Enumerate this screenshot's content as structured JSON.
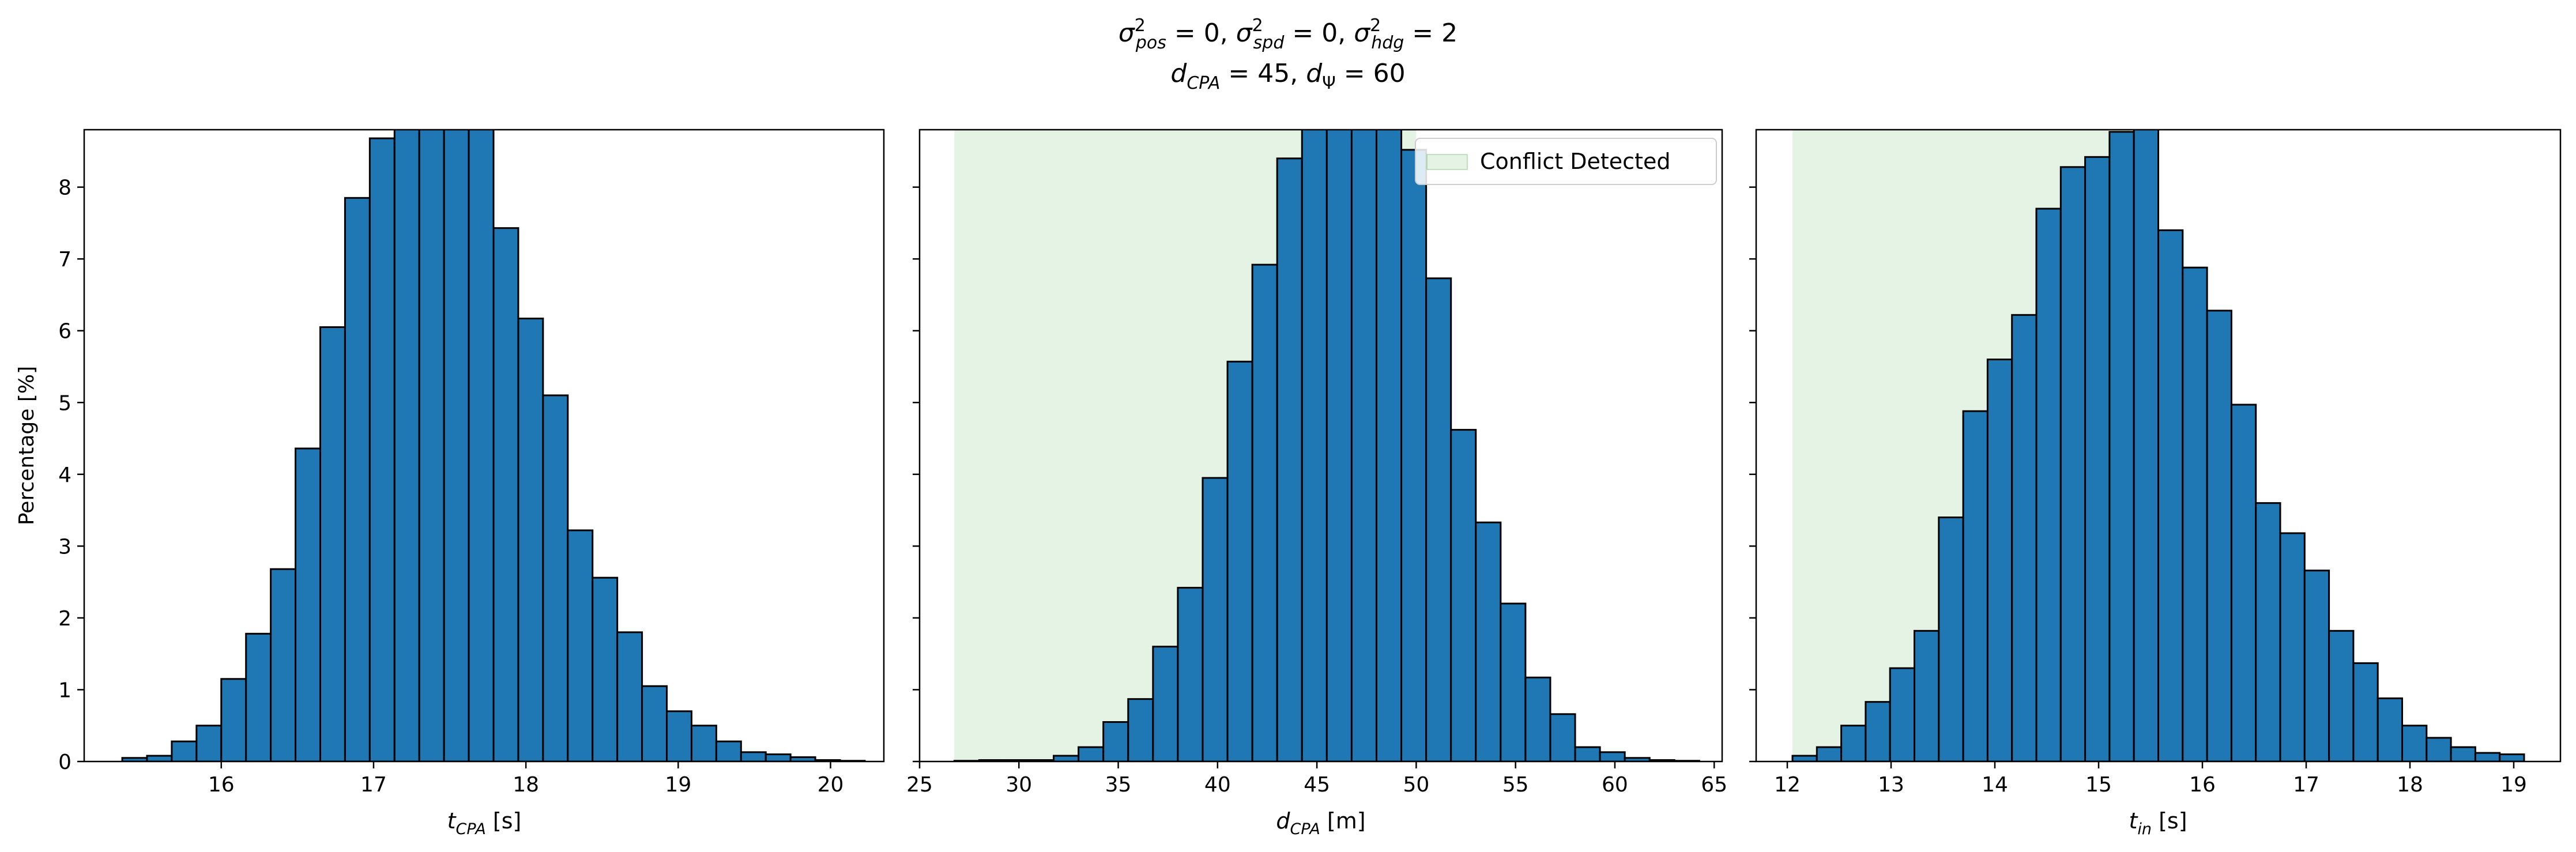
{
  "figure": {
    "title_line1": "σ²pos = 0, σ²spd = 0, σ²hdg = 2",
    "title_line2": "dCPA = 45, dΨ = 60",
    "bar_color": "#1f77b4",
    "edge_color": "#000000",
    "region_color": "#2ca02c"
  },
  "chart_data": [
    {
      "type": "bar",
      "subtype": "histogram",
      "xlabel": "t_CPA [s]",
      "ylabel": "Percentage [%]",
      "xlim": [
        15.1,
        20.35
      ],
      "ylim": [
        0,
        8.8
      ],
      "xticks": [
        16,
        17,
        18,
        19,
        20
      ],
      "yticks": [
        0,
        1,
        2,
        3,
        4,
        5,
        6,
        7,
        8
      ],
      "bins": {
        "start": 15.35,
        "width": 0.1625,
        "count": 30
      },
      "values": [
        0.05,
        0.08,
        0.28,
        0.5,
        1.15,
        1.78,
        2.68,
        4.36,
        6.05,
        7.85,
        8.68,
        8.9,
        8.9,
        8.9,
        8.9,
        7.43,
        6.17,
        5.1,
        3.22,
        2.56,
        1.8,
        1.05,
        0.7,
        0.5,
        0.28,
        0.13,
        0.1,
        0.06,
        0.02,
        0.01
      ],
      "grid": false
    },
    {
      "type": "bar",
      "subtype": "histogram",
      "xlabel": "d_CPA [m]",
      "ylabel": "",
      "xlim": [
        25.0,
        65.4
      ],
      "ylim": [
        0,
        8.8
      ],
      "xticks": [
        25,
        30,
        35,
        40,
        45,
        50,
        55,
        60,
        65
      ],
      "yticks": [
        0,
        1,
        2,
        3,
        4,
        5,
        6,
        7,
        8
      ],
      "bins": {
        "start": 26.75,
        "width": 1.25,
        "count": 30
      },
      "values": [
        0.01,
        0.02,
        0.02,
        0.02,
        0.08,
        0.2,
        0.55,
        0.87,
        1.6,
        2.42,
        3.95,
        5.57,
        6.92,
        8.4,
        8.9,
        8.9,
        8.9,
        8.9,
        8.52,
        6.73,
        4.62,
        3.33,
        2.2,
        1.17,
        0.66,
        0.2,
        0.13,
        0.05,
        0.02,
        0.01
      ],
      "shaded_region": {
        "x": [
          26.75,
          50.0
        ],
        "label": "Conflict Detected"
      },
      "legend": {
        "position": "top-right",
        "entries": [
          "Conflict Detected"
        ]
      },
      "grid": false
    },
    {
      "type": "bar",
      "subtype": "histogram",
      "xlabel": "t_in [s]",
      "ylabel": "",
      "xlim": [
        11.7,
        19.45
      ],
      "ylim": [
        0,
        8.8
      ],
      "xticks": [
        12,
        13,
        14,
        15,
        16,
        17,
        18,
        19
      ],
      "yticks": [
        0,
        1,
        2,
        3,
        4,
        5,
        6,
        7,
        8
      ],
      "bins": {
        "start": 12.05,
        "width": 0.235,
        "count": 30
      },
      "values": [
        0.08,
        0.2,
        0.5,
        0.83,
        1.3,
        1.82,
        3.4,
        4.88,
        5.6,
        6.22,
        7.7,
        8.28,
        8.42,
        8.77,
        8.9,
        7.4,
        6.88,
        6.28,
        4.97,
        3.6,
        3.18,
        2.66,
        1.82,
        1.37,
        0.88,
        0.5,
        0.33,
        0.2,
        0.12,
        0.1
      ],
      "shaded_region": {
        "x": [
          12.05,
          15.3
        ],
        "label": "Conflict Detected"
      },
      "grid": false
    }
  ]
}
